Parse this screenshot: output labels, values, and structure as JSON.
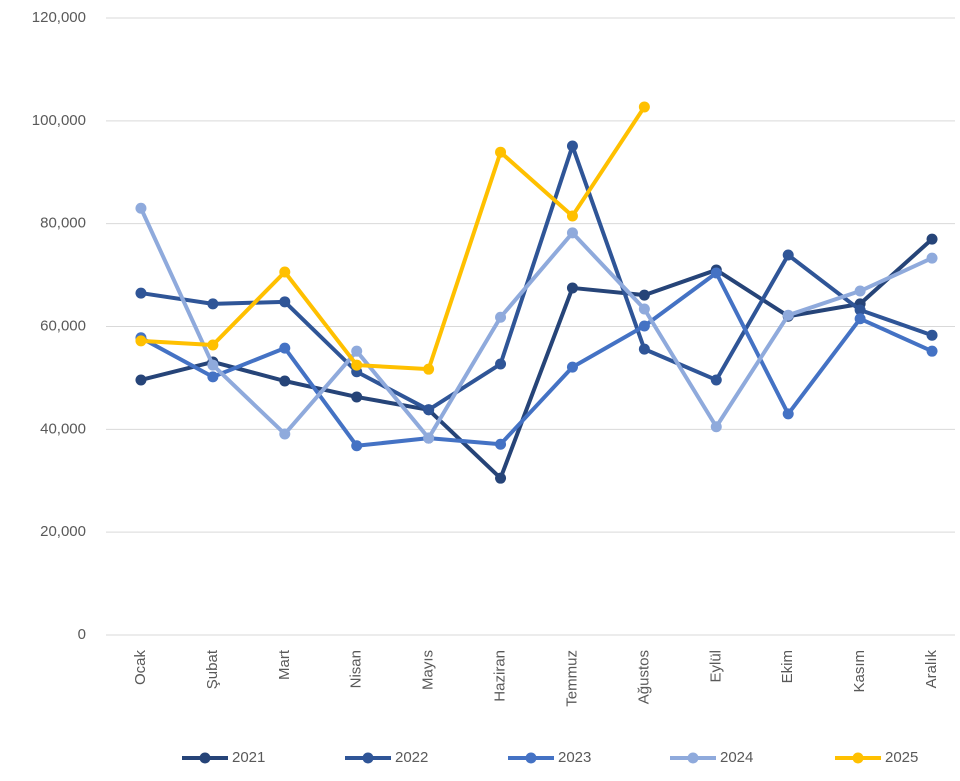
{
  "chart_data": {
    "type": "line",
    "categories": [
      "Ocak",
      "Şubat",
      "Mart",
      "Nisan",
      "Mayıs",
      "Haziran",
      "Temmuz",
      "Ağustos",
      "Eylül",
      "Ekim",
      "Kasım",
      "Aralık"
    ],
    "series": [
      {
        "name": "2021",
        "color": "#264478",
        "values": [
          49600,
          53100,
          49400,
          46300,
          43800,
          30500,
          67500,
          66100,
          71000,
          62000,
          64400,
          77000
        ]
      },
      {
        "name": "2022",
        "color": "#2f5597",
        "values": [
          66500,
          64400,
          64800,
          51200,
          43800,
          52700,
          95100,
          55600,
          49600,
          73900,
          63200,
          58300
        ]
      },
      {
        "name": "2023",
        "color": "#4472c4",
        "values": [
          57800,
          50200,
          55800,
          36800,
          38300,
          37100,
          52100,
          60100,
          70400,
          43000,
          61500,
          55200
        ]
      },
      {
        "name": "2024",
        "color": "#8faadc",
        "values": [
          83000,
          52500,
          39100,
          55200,
          38300,
          61800,
          78200,
          63400,
          40500,
          62200,
          66900,
          73300
        ]
      },
      {
        "name": "2025",
        "color": "#ffc000",
        "values": [
          57200,
          56400,
          70600,
          52500,
          51700,
          93900,
          81500,
          102700,
          null,
          null,
          null,
          null
        ]
      }
    ],
    "ylim": [
      0,
      120000
    ],
    "yticks": [
      0,
      {
        "value": 20000,
        "label": "20,000"
      },
      {
        "value": 40000,
        "label": "40,000"
      },
      {
        "value": 60000,
        "label": "60,000"
      },
      {
        "value": 80000,
        "label": "80,000"
      },
      {
        "value": 100000,
        "label": "100,000"
      },
      {
        "value": 120000,
        "label": "120,000"
      }
    ],
    "grid": true,
    "legend": "bottom"
  }
}
